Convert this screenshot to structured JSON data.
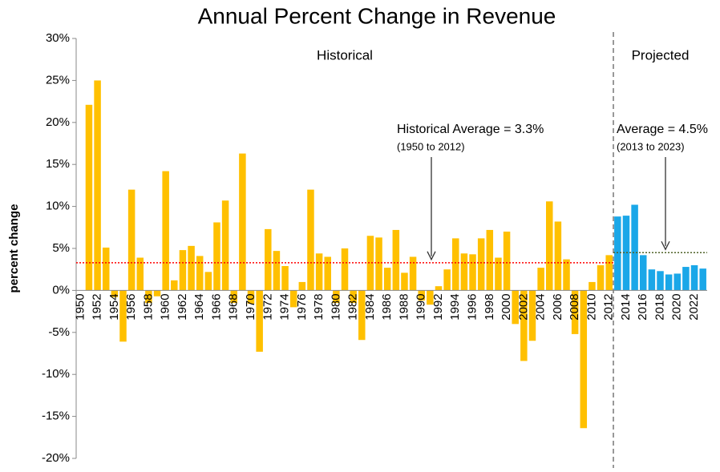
{
  "chart_data": {
    "type": "bar",
    "title": "Annual Percent Change in Revenue",
    "y_label": "percent change",
    "categories": [
      "1950",
      null,
      "1952",
      null,
      "1954",
      null,
      "1956",
      null,
      "1958",
      null,
      "1960",
      null,
      "1962",
      null,
      "1964",
      null,
      "1966",
      null,
      "1968",
      null,
      "1970",
      null,
      "1972",
      null,
      "1974",
      null,
      "1976",
      null,
      "1978",
      null,
      "1980",
      null,
      "1982",
      null,
      "1984",
      null,
      "1986",
      null,
      "1988",
      null,
      "1990",
      null,
      "1992",
      null,
      "1994",
      null,
      "1996",
      null,
      "1998",
      null,
      "2000",
      null,
      "2002",
      null,
      "2004",
      null,
      "2006",
      null,
      "2008",
      null,
      "2010",
      null,
      "2012",
      null,
      "2014",
      null,
      "2016",
      null,
      "2018",
      null,
      "2020",
      null,
      "2022",
      null
    ],
    "series": [
      {
        "name": "Historical",
        "color": "#ffc000",
        "values": [
          0,
          22.1,
          25.0,
          5.1,
          -0.8,
          -6.1,
          12.0,
          3.9,
          -1.5,
          -0.7,
          14.2,
          1.2,
          4.8,
          5.3,
          4.1,
          2.2,
          8.1,
          10.7,
          -1.5,
          16.3,
          -1.6,
          -7.3,
          7.3,
          4.7,
          2.9,
          -2.0,
          1.0,
          12.0,
          4.4,
          4.0,
          -1.5,
          5.0,
          -1.5,
          -5.9,
          6.5,
          6.3,
          2.7,
          7.2,
          2.1,
          4.0,
          -1.2,
          -1.7,
          0.5,
          2.5,
          6.2,
          4.4,
          4.3,
          6.2,
          7.2,
          3.9,
          7.0,
          -4.0,
          -8.4,
          -6.0,
          2.7,
          10.6,
          8.2,
          3.7,
          -5.2,
          -16.4,
          1.0,
          3.0,
          4.2,
          null,
          null,
          null,
          null,
          null,
          null,
          null,
          null,
          null,
          null,
          null
        ]
      },
      {
        "name": "Projected",
        "color": "#1aa7e8",
        "values": [
          null,
          null,
          null,
          null,
          null,
          null,
          null,
          null,
          null,
          null,
          null,
          null,
          null,
          null,
          null,
          null,
          null,
          null,
          null,
          null,
          null,
          null,
          null,
          null,
          null,
          null,
          null,
          null,
          null,
          null,
          null,
          null,
          null,
          null,
          null,
          null,
          null,
          null,
          null,
          null,
          null,
          null,
          null,
          null,
          null,
          null,
          null,
          null,
          null,
          null,
          null,
          null,
          null,
          null,
          null,
          null,
          null,
          null,
          null,
          null,
          null,
          null,
          null,
          8.8,
          8.9,
          10.2,
          4.2,
          2.5,
          2.3,
          1.9,
          2.0,
          2.8,
          3.0,
          2.6
        ]
      }
    ],
    "reference_lines": [
      {
        "value": 3.3,
        "label": "Historical Average = 3.3%",
        "sublabel": "(1950 to 2012)",
        "color": "#ff0000",
        "series": 0
      },
      {
        "value": 4.5,
        "label": "Average = 4.5%",
        "sublabel": "(2013 to 2023)",
        "color": "#4f6228",
        "series": 1
      }
    ],
    "ylim": [
      -20,
      30
    ],
    "yticks": [
      {
        "value": -20,
        "label": "-20%"
      },
      {
        "value": -15,
        "label": "-15%"
      },
      {
        "value": -10,
        "label": "-10%"
      },
      {
        "value": -5,
        "label": "-5%"
      },
      {
        "value": 0,
        "label": "0%"
      },
      {
        "value": 5,
        "label": "5%"
      },
      {
        "value": 10,
        "label": "10%"
      },
      {
        "value": 15,
        "label": "15%"
      },
      {
        "value": 20,
        "label": "20%"
      },
      {
        "value": 25,
        "label": "25%"
      },
      {
        "value": 30,
        "label": "30%"
      }
    ]
  }
}
